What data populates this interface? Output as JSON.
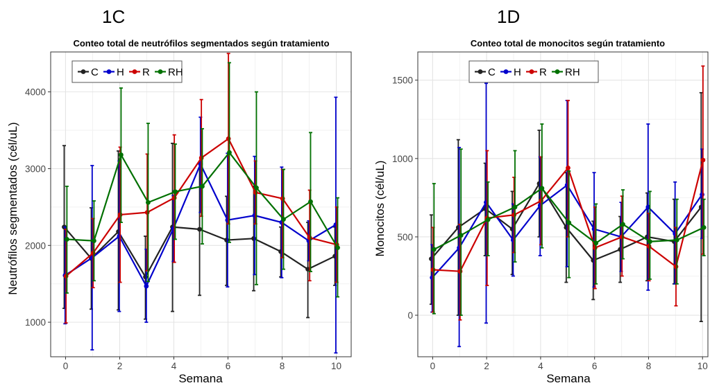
{
  "chart_data": [
    {
      "type": "line",
      "panel_label": "1C",
      "title": "Conteo total de neutrófilos segmentados según tratamiento",
      "xlabel": "Semana",
      "ylabel": "Neutrófilos segmentados (cél/uL)",
      "x": [
        0,
        1,
        2,
        3,
        4,
        5,
        6,
        7,
        8,
        9,
        10
      ],
      "xlim": [
        -0.55,
        10.55
      ],
      "ylim": [
        550,
        4520
      ],
      "xticks": [
        0,
        2,
        4,
        6,
        8,
        10
      ],
      "yticks": [
        1000,
        2000,
        3000,
        4000
      ],
      "grid": true,
      "error_bars": true,
      "legend_position": "top-left",
      "series": [
        {
          "name": "C",
          "color": "#222222",
          "values": [
            2240,
            1830,
            2180,
            1590,
            2240,
            2210,
            2070,
            2090,
            1920,
            1690,
            1860
          ],
          "err_low": [
            1180,
            1170,
            1160,
            1040,
            1140,
            1350,
            1480,
            1410,
            1590,
            1060,
            1480
          ],
          "err_high": [
            3300,
            2490,
            3230,
            2120,
            3330,
            3080,
            2640,
            2770,
            2240,
            2300,
            2240
          ]
        },
        {
          "name": "H",
          "color": "#0000cc",
          "values": [
            1610,
            1840,
            2120,
            1470,
            2220,
            3060,
            2330,
            2390,
            2300,
            2060,
            2270
          ],
          "err_low": [
            980,
            640,
            1140,
            1000,
            1790,
            2430,
            1460,
            1620,
            1580,
            1800,
            600
          ],
          "err_high": [
            2240,
            3040,
            3100,
            1950,
            2650,
            3670,
            3200,
            3160,
            3020,
            2320,
            3930
          ]
        },
        {
          "name": "R",
          "color": "#cc0000",
          "values": [
            1600,
            1900,
            2400,
            2430,
            2620,
            3140,
            3390,
            2690,
            2610,
            2100,
            2010
          ],
          "err_low": [
            990,
            1450,
            1520,
            1670,
            1780,
            2380,
            2280,
            2280,
            1840,
            1540,
            1520
          ],
          "err_high": [
            2210,
            2350,
            3280,
            3190,
            3440,
            3900,
            4500,
            3100,
            2990,
            2720,
            2500
          ]
        },
        {
          "name": "RH",
          "color": "#007000",
          "values": [
            2080,
            2060,
            3180,
            2560,
            2700,
            2770,
            3210,
            2750,
            2340,
            2570,
            1970
          ],
          "err_low": [
            1380,
            1540,
            2300,
            1530,
            2080,
            2020,
            2040,
            1490,
            1690,
            1660,
            1330
          ],
          "err_high": [
            2770,
            2580,
            4050,
            3590,
            3320,
            3520,
            4380,
            4000,
            2990,
            3470,
            2620
          ]
        }
      ]
    },
    {
      "type": "line",
      "panel_label": "1D",
      "title": "Conteo total de monocitos según tratamiento",
      "xlabel": "Semana",
      "ylabel": "Monocitos (cél/uL)",
      "x": [
        0,
        1,
        2,
        3,
        4,
        5,
        6,
        7,
        8,
        9,
        10
      ],
      "xlim": [
        -0.55,
        10.2
      ],
      "ylim": [
        -265,
        1680
      ],
      "xticks": [
        0,
        2,
        4,
        6,
        8,
        10
      ],
      "yticks": [
        0,
        500,
        1000,
        1500
      ],
      "grid": true,
      "error_bars": true,
      "legend_position": "top-center",
      "series": [
        {
          "name": "C",
          "color": "#222222",
          "values": [
            360,
            560,
            680,
            550,
            840,
            560,
            350,
            420,
            500,
            470,
            690
          ],
          "err_low": [
            70,
            0,
            380,
            260,
            500,
            210,
            100,
            210,
            220,
            200,
            -40
          ],
          "err_high": [
            640,
            1120,
            970,
            790,
            1180,
            910,
            600,
            630,
            780,
            740,
            1420
          ]
        },
        {
          "name": "H",
          "color": "#0000cc",
          "values": [
            240,
            430,
            720,
            480,
            700,
            830,
            550,
            500,
            690,
            520,
            770
          ],
          "err_low": [
            20,
            -200,
            -50,
            250,
            380,
            310,
            180,
            280,
            160,
            200,
            490
          ],
          "err_high": [
            450,
            1070,
            1480,
            710,
            1010,
            1370,
            910,
            720,
            1220,
            850,
            1060
          ]
        },
        {
          "name": "R",
          "color": "#cc0000",
          "values": [
            290,
            280,
            620,
            640,
            730,
            940,
            430,
            500,
            440,
            310,
            990
          ],
          "err_low": [
            20,
            -30,
            190,
            400,
            450,
            500,
            170,
            250,
            220,
            60,
            390
          ],
          "err_high": [
            560,
            580,
            1050,
            880,
            1010,
            1370,
            690,
            760,
            650,
            560,
            1590
          ]
        },
        {
          "name": "RH",
          "color": "#007000",
          "values": [
            420,
            510,
            610,
            690,
            810,
            590,
            460,
            580,
            470,
            480,
            560
          ],
          "err_low": [
            10,
            0,
            380,
            340,
            430,
            240,
            200,
            360,
            230,
            200,
            380
          ],
          "err_high": [
            840,
            1060,
            850,
            1050,
            1220,
            920,
            710,
            800,
            790,
            740,
            740
          ]
        }
      ]
    }
  ]
}
